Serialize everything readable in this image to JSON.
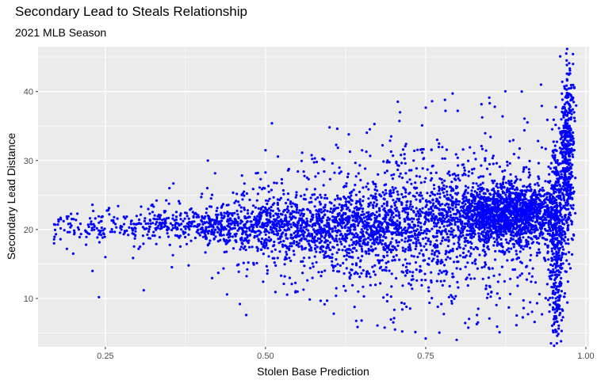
{
  "chart_data": {
    "type": "scatter",
    "title": "Secondary Lead to Steals Relationship",
    "subtitle": "2021 MLB Season",
    "xlabel": "Stolen Base Prediction",
    "ylabel": "Secondary Lead Distance",
    "xlim": [
      0.145,
      1.005
    ],
    "ylim": [
      3.0,
      46.5
    ],
    "x_ticks": [
      0.25,
      0.5,
      0.75,
      1.0
    ],
    "x_tick_labels": [
      "0.25",
      "0.50",
      "0.75",
      "1.00"
    ],
    "y_ticks": [
      10,
      20,
      30,
      40
    ],
    "y_tick_labels": [
      "10",
      "20",
      "30",
      "40"
    ],
    "grid": true,
    "panel_background": "#ebebeb",
    "point_color": "#0000ff",
    "points": [
      [
        0.17,
        18.0
      ],
      [
        0.18,
        18.6
      ],
      [
        0.19,
        17.2
      ],
      [
        0.2,
        16.5
      ],
      [
        0.21,
        18.9
      ],
      [
        0.22,
        17.8
      ],
      [
        0.23,
        14.0
      ],
      [
        0.24,
        10.2
      ],
      [
        0.24,
        21.0
      ],
      [
        0.25,
        16.0
      ],
      [
        0.27,
        23.4
      ],
      [
        0.29,
        20.8
      ],
      [
        0.31,
        11.2
      ],
      [
        0.33,
        24.2
      ],
      [
        0.35,
        26.0
      ],
      [
        0.38,
        14.8
      ],
      [
        0.41,
        30.0
      ],
      [
        0.44,
        10.6
      ],
      [
        0.46,
        9.2
      ],
      [
        0.47,
        7.6
      ],
      [
        0.5,
        31.5
      ],
      [
        0.51,
        35.4
      ],
      [
        0.53,
        13.2
      ],
      [
        0.55,
        11.0
      ],
      [
        0.58,
        29.8
      ],
      [
        0.6,
        34.8
      ],
      [
        0.63,
        33.8
      ],
      [
        0.65,
        6.8
      ],
      [
        0.67,
        35.3
      ],
      [
        0.69,
        9.6
      ],
      [
        0.71,
        37.0
      ],
      [
        0.72,
        8.8
      ],
      [
        0.75,
        4.2
      ],
      [
        0.76,
        38.6
      ],
      [
        0.78,
        38.8
      ],
      [
        0.8,
        37.2
      ],
      [
        0.83,
        7.6
      ],
      [
        0.85,
        38.3
      ],
      [
        0.87,
        36.4
      ],
      [
        0.9,
        40.0
      ],
      [
        0.92,
        6.6
      ],
      [
        0.93,
        41.0
      ],
      [
        0.95,
        7.0
      ],
      [
        0.96,
        45.1
      ],
      [
        0.97,
        44.5
      ],
      [
        0.98,
        44.0
      ]
    ],
    "clusters": [
      {
        "x_mean": 0.62,
        "x_sd": 0.22,
        "x_range": [
          0.17,
          0.955
        ],
        "y_mean": 20.5,
        "y_sd": 2.4,
        "count": 1800
      },
      {
        "x_mean": 0.7,
        "x_sd": 0.16,
        "x_range": [
          0.25,
          0.955
        ],
        "y_mean": 20.5,
        "y_sd": 6.0,
        "count": 1500
      },
      {
        "x_mean": 0.88,
        "x_sd": 0.045,
        "x_range": [
          0.75,
          0.955
        ],
        "y_mean": 22.5,
        "y_sd": 1.6,
        "count": 1300
      },
      {
        "x_mean": 0.955,
        "x_sd": 0.006,
        "x_range": [
          0.935,
          0.975
        ],
        "y_mean": 19.0,
        "y_sd": 6.0,
        "count": 450
      },
      {
        "x_mean": 0.972,
        "x_sd": 0.005,
        "x_range": [
          0.96,
          0.985
        ],
        "y_mean": 31.0,
        "y_sd": 5.0,
        "count": 400
      }
    ]
  }
}
